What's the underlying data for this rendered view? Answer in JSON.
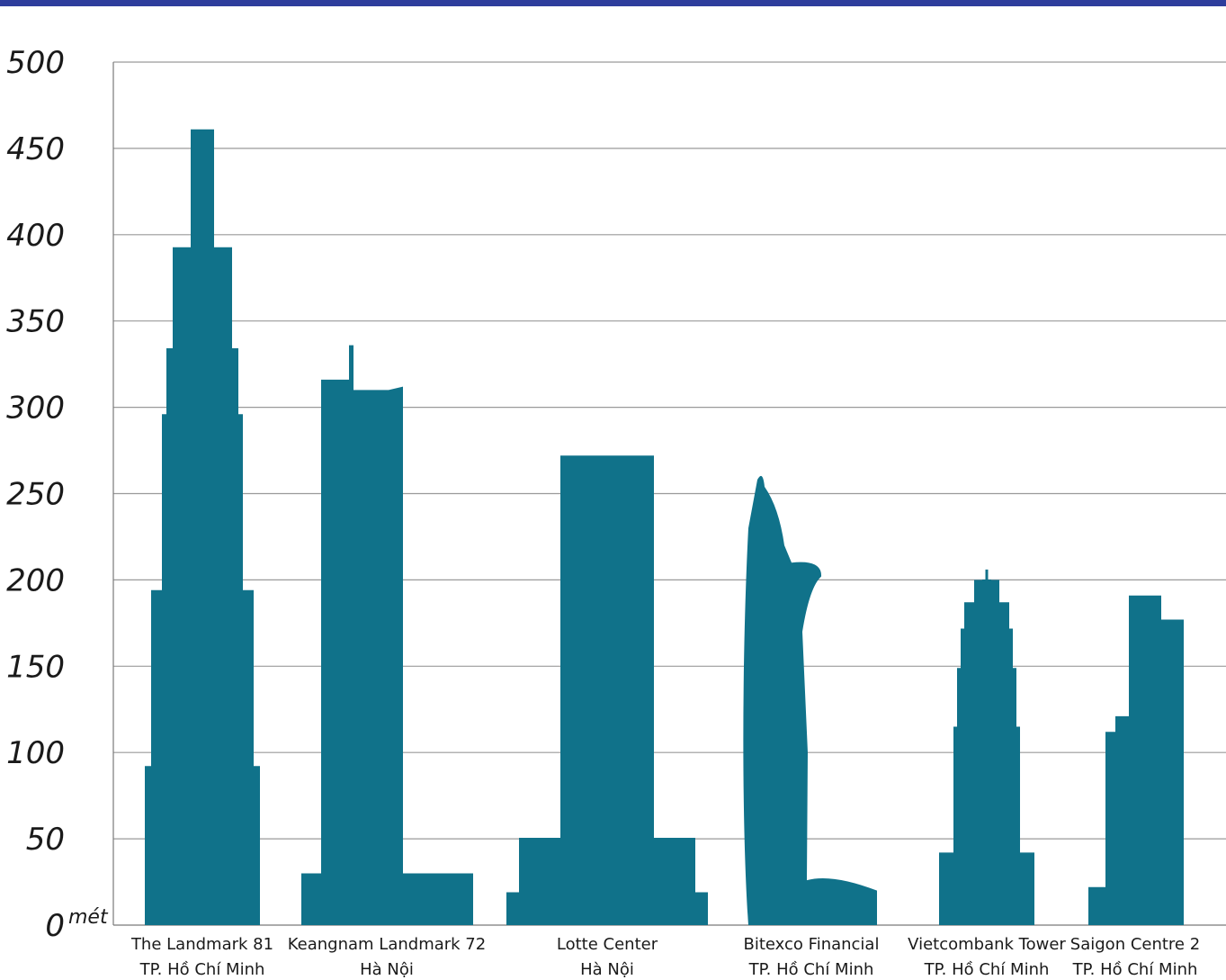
{
  "colors": {
    "bar": "#10728a",
    "topbar": "#2e3d9c",
    "grid": "#9a9a9a"
  },
  "chart_data": {
    "type": "bar",
    "title": "",
    "xlabel": "",
    "ylabel": "",
    "unit_label": "mét",
    "ylim": [
      0,
      500
    ],
    "yticks": [
      0,
      50,
      100,
      150,
      200,
      250,
      300,
      350,
      400,
      450,
      500
    ],
    "grid": true,
    "categories": [
      {
        "name": "The Landmark 81",
        "location": "TP. Hồ Chí Minh"
      },
      {
        "name": "Keangnam Landmark 72",
        "location": "Hà Nội"
      },
      {
        "name": "Lotte Center",
        "location": "Hà Nội"
      },
      {
        "name": "Bitexco Financial",
        "location": "TP. Hồ Chí Minh"
      },
      {
        "name": "Vietcombank Tower",
        "location": "TP. Hồ Chí Minh"
      },
      {
        "name": "Saigon Centre 2",
        "location": "TP. Hồ Chí Minh"
      }
    ],
    "values": [
      461,
      336,
      272,
      262,
      206,
      191
    ]
  }
}
